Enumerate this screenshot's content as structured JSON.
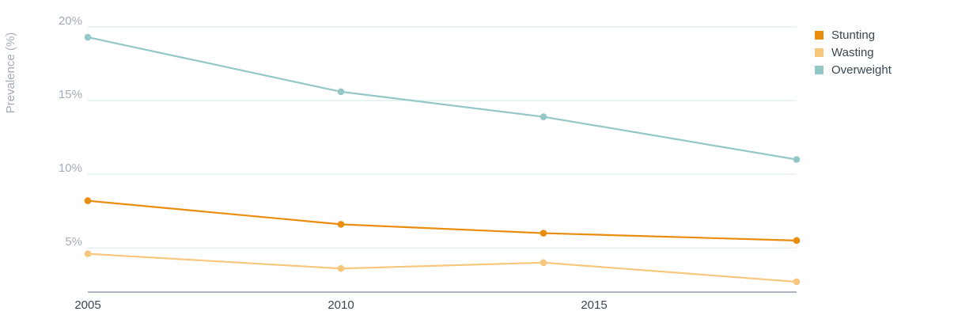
{
  "chart_data": {
    "type": "line",
    "ylabel": "Prevalence (%)",
    "xlabel": "",
    "x": [
      2005,
      2010,
      2014,
      2019
    ],
    "xticks": [
      "2005",
      "2010",
      "2015"
    ],
    "xtick_values": [
      2005,
      2010,
      2015
    ],
    "yticks": [
      "5%",
      "10%",
      "15%",
      "20%"
    ],
    "ytick_values": [
      5,
      10,
      15,
      20
    ],
    "xlim": [
      2005,
      2019
    ],
    "ylim": [
      2,
      20
    ],
    "grid": true,
    "legend_position": "top-right",
    "series": [
      {
        "name": "Stunting",
        "color": "#ea8c0d",
        "values": [
          8.2,
          6.6,
          6.0,
          5.5
        ]
      },
      {
        "name": "Wasting",
        "color": "#f7c77e",
        "values": [
          4.6,
          3.6,
          4.0,
          2.7
        ]
      },
      {
        "name": "Overweight",
        "color": "#94c8c6",
        "values": [
          19.3,
          15.6,
          13.9,
          11.0
        ]
      }
    ]
  }
}
